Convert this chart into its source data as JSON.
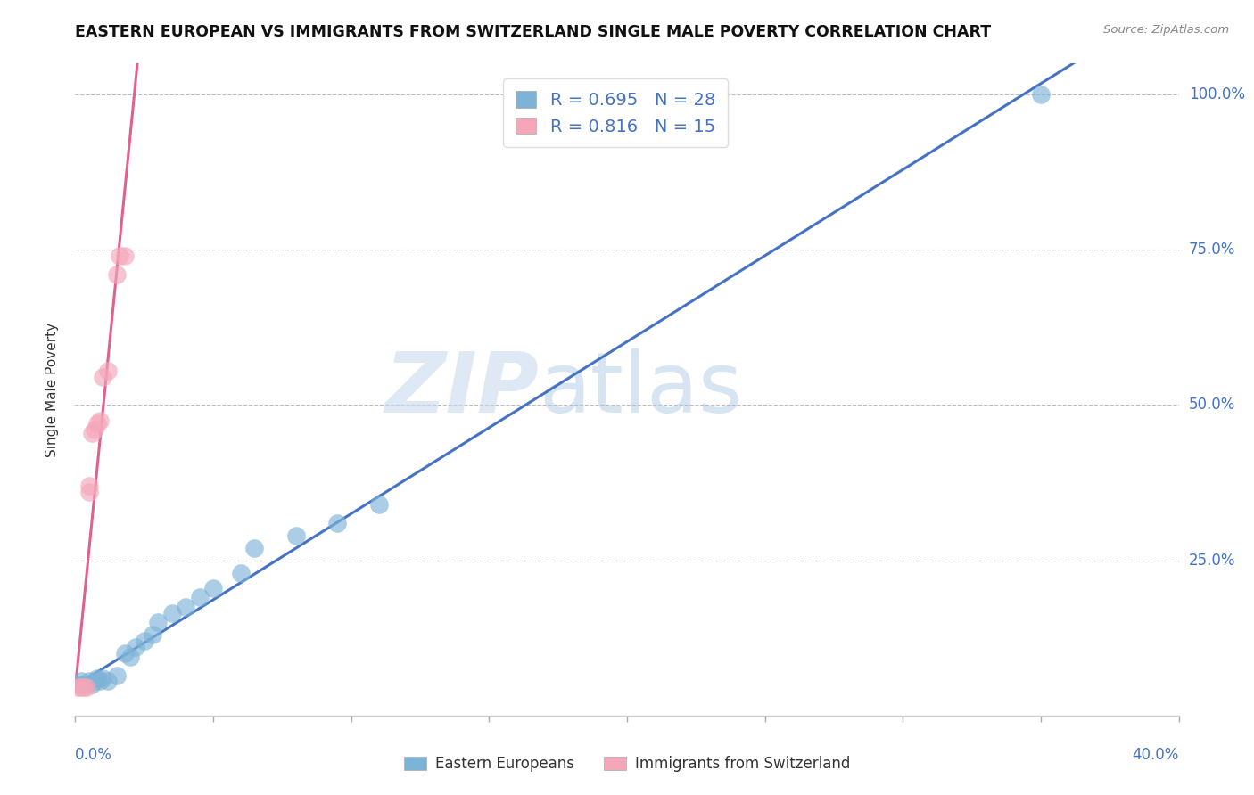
{
  "title": "EASTERN EUROPEAN VS IMMIGRANTS FROM SWITZERLAND SINGLE MALE POVERTY CORRELATION CHART",
  "source": "Source: ZipAtlas.com",
  "ylabel": "Single Male Poverty",
  "yticks": [
    "100.0%",
    "75.0%",
    "50.0%",
    "25.0%"
  ],
  "ytick_vals": [
    1.0,
    0.75,
    0.5,
    0.25
  ],
  "legend_label1": "Eastern Europeans",
  "legend_label2": "Immigrants from Switzerland",
  "r1": 0.695,
  "n1": 28,
  "r2": 0.816,
  "n2": 15,
  "color1": "#7EB3D8",
  "color2": "#F4A7B9",
  "trendline_color1": "#4472C4",
  "trendline_color2": "#E06090",
  "blue_points_x": [
    0.001,
    0.002,
    0.003,
    0.004,
    0.005,
    0.006,
    0.007,
    0.008,
    0.009,
    0.01,
    0.012,
    0.015,
    0.018,
    0.02,
    0.022,
    0.025,
    0.028,
    0.03,
    0.035,
    0.04,
    0.045,
    0.05,
    0.06,
    0.065,
    0.08,
    0.095,
    0.11,
    0.35
  ],
  "blue_points_y": [
    0.05,
    0.055,
    0.05,
    0.05,
    0.055,
    0.05,
    0.055,
    0.06,
    0.055,
    0.06,
    0.055,
    0.065,
    0.1,
    0.095,
    0.11,
    0.12,
    0.13,
    0.15,
    0.165,
    0.175,
    0.19,
    0.205,
    0.23,
    0.27,
    0.29,
    0.31,
    0.34,
    1.0
  ],
  "pink_points_x": [
    0.001,
    0.002,
    0.003,
    0.004,
    0.005,
    0.005,
    0.006,
    0.007,
    0.008,
    0.009,
    0.01,
    0.012,
    0.015,
    0.016,
    0.018
  ],
  "pink_points_y": [
    0.045,
    0.045,
    0.045,
    0.045,
    0.36,
    0.37,
    0.455,
    0.46,
    0.47,
    0.475,
    0.545,
    0.555,
    0.71,
    0.74,
    0.74
  ],
  "xmin": 0.0,
  "xmax": 0.4,
  "ymin": 0.0,
  "ymax": 1.05,
  "watermark_zip": "ZIP",
  "watermark_atlas": "atlas"
}
